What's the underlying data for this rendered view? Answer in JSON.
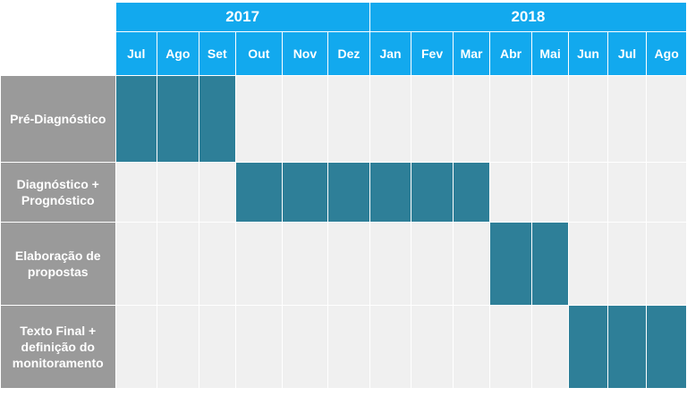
{
  "years": [
    {
      "label": "2017",
      "span": 6
    },
    {
      "label": "2018",
      "span": 8
    }
  ],
  "months": [
    "Jul",
    "Ago",
    "Set",
    "Out",
    "Nov",
    "Dez",
    "Jan",
    "Fev",
    "Mar",
    "Abr",
    "Mai",
    "Jun",
    "Jul",
    "Ago"
  ],
  "phases": [
    {
      "label": "Pré-Diagnóstico",
      "start": 0,
      "end": 2
    },
    {
      "label": "Diagnóstico + Prognóstico",
      "start": 3,
      "end": 8
    },
    {
      "label": "Elaboração de propostas",
      "start": 9,
      "end": 10
    },
    {
      "label": "Texto Final + definição do monitoramento",
      "start": 11,
      "end": 13
    }
  ],
  "colors": {
    "header": "#12a9ee",
    "phase_label": "#9a9a9a",
    "active_cell": "#2e7f98",
    "empty_cell": "#f0f0f0"
  }
}
